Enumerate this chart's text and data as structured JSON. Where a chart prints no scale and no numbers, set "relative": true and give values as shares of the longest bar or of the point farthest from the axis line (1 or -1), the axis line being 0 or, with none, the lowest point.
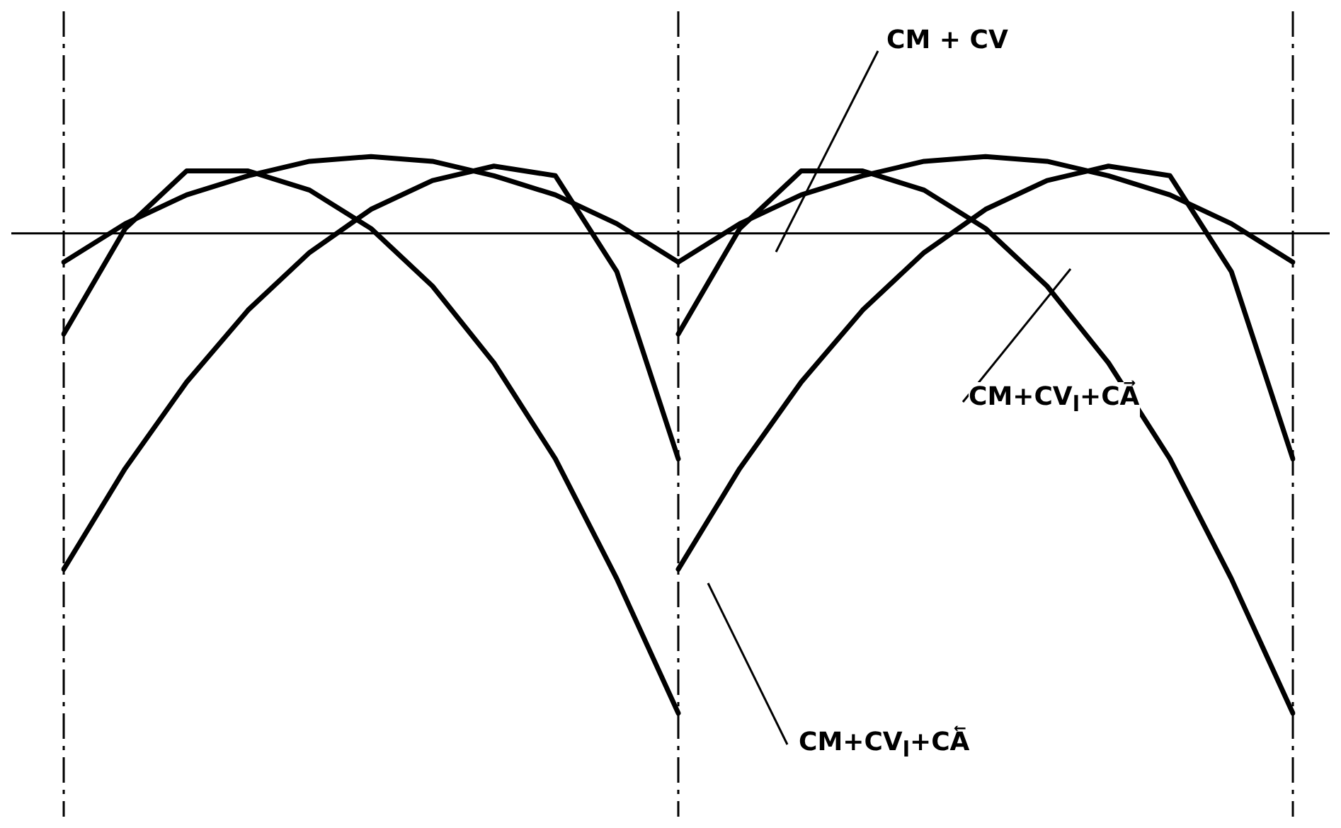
{
  "chart_data": {
    "type": "line",
    "relative": true,
    "legend": false,
    "tick_labels": false,
    "grid": "x",
    "marker": "none",
    "line_style": "solid",
    "categories": [
      null,
      null,
      null,
      null,
      null,
      null,
      null,
      null,
      null,
      null,
      null,
      null,
      null,
      null,
      null,
      null,
      null,
      null,
      null,
      null,
      null
    ],
    "series": [
      {
        "color": "#000000",
        "values": [
          -0.06,
          0.02,
          0.08,
          0.12,
          0.15,
          0.16,
          0.15,
          0.12,
          0.08,
          0.02,
          -0.06,
          null,
          null,
          null,
          null,
          null,
          null,
          null,
          null,
          null,
          null
        ]
      },
      {
        "color": "#000000",
        "values": [
          null,
          null,
          null,
          null,
          null,
          null,
          null,
          null,
          null,
          null,
          -0.06,
          0.02,
          0.08,
          0.12,
          0.15,
          0.16,
          0.15,
          0.12,
          0.08,
          0.02,
          -0.06
        ]
      },
      {
        "color": "#000000",
        "values": [
          -0.21,
          0.01,
          0.13,
          0.13,
          0.09,
          0.01,
          -0.11,
          -0.27,
          -0.47,
          -0.72,
          -1,
          null,
          null,
          null,
          null,
          null,
          null,
          null,
          null,
          null,
          null
        ]
      },
      {
        "color": "#000000",
        "values": [
          null,
          null,
          null,
          null,
          null,
          null,
          null,
          null,
          null,
          null,
          -0.21,
          0.01,
          0.13,
          0.13,
          0.09,
          0.01,
          -0.11,
          -0.27,
          -0.47,
          -0.72,
          -1
        ]
      },
      {
        "color": "#000000",
        "values": [
          -0.7,
          -0.49,
          -0.31,
          -0.16,
          -0.04,
          0.05,
          0.11,
          0.14,
          0.12,
          -0.08,
          -0.47,
          null,
          null,
          null,
          null,
          null,
          null,
          null,
          null,
          null,
          null
        ]
      },
      {
        "color": "#000000",
        "values": [
          null,
          null,
          null,
          null,
          null,
          null,
          null,
          null,
          null,
          null,
          -0.7,
          -0.49,
          -0.31,
          -0.16,
          -0.04,
          0.05,
          0.11,
          0.14,
          0.12,
          -0.08,
          -0.47
        ]
      }
    ],
    "annotations": [
      "CM + CV",
      "CM+CV$_{l}$+CA⃗",
      "CM+CV$_{l}$+CA⃖"
    ]
  }
}
